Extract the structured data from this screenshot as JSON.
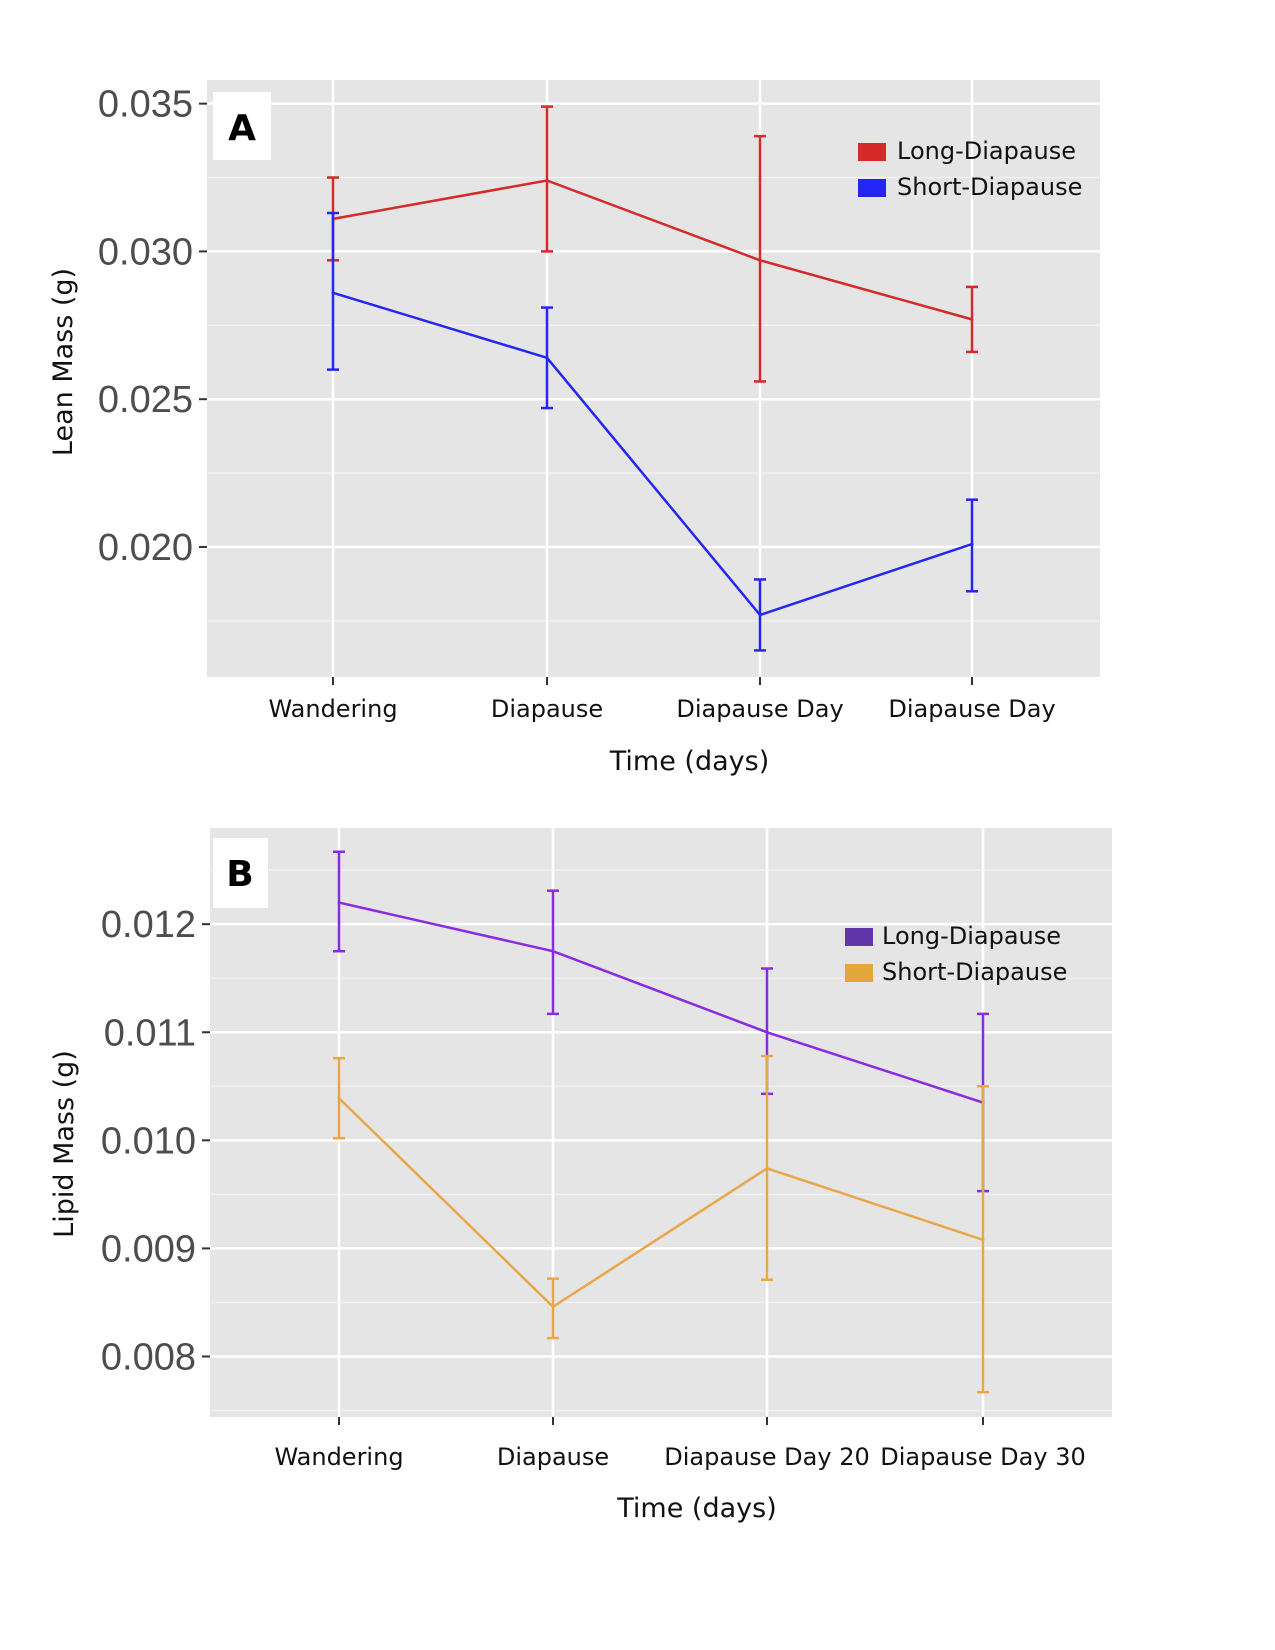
{
  "chart_data": [
    {
      "type": "line",
      "panel_label": "A",
      "xlabel": "Time (days)",
      "ylabel": "Lean Mass (g)",
      "categories": [
        "Wandering",
        "Diapause",
        "Diapause Day",
        "Diapause Day"
      ],
      "yticks": [
        "0.020",
        "0.025",
        "0.030",
        "0.035"
      ],
      "ylim": [
        0.0156,
        0.0358
      ],
      "grid": true,
      "legend_position": "top-right",
      "series": [
        {
          "name": "Long-Diapause",
          "color": "#d42a2a",
          "values": [
            0.0311,
            0.0324,
            0.0297,
            0.0277
          ],
          "err_low": [
            0.0297,
            0.03,
            0.0256,
            0.0266
          ],
          "err_high": [
            0.0325,
            0.0349,
            0.0339,
            0.0288
          ]
        },
        {
          "name": "Short-Diapause",
          "color": "#2626f2",
          "values": [
            0.0286,
            0.0264,
            0.0177,
            0.0201
          ],
          "err_low": [
            0.026,
            0.0247,
            0.0165,
            0.0185
          ],
          "err_high": [
            0.0313,
            0.0281,
            0.0189,
            0.0216
          ]
        }
      ]
    },
    {
      "type": "line",
      "panel_label": "B",
      "xlabel": "Time (days)",
      "ylabel": "Lipid Mass (g)",
      "categories": [
        "Wandering",
        "Diapause",
        "Diapause Day 20",
        "Diapause Day 30"
      ],
      "yticks": [
        "0.008",
        "0.009",
        "0.010",
        "0.011",
        "0.012"
      ],
      "ylim": [
        0.00744,
        0.01289
      ],
      "grid": true,
      "legend_position": "top-right",
      "series": [
        {
          "name": "Long-Diapause",
          "color": "#8a2be2",
          "legend_color": "#5f35a8",
          "values": [
            0.0122,
            0.01175,
            0.011,
            0.01035
          ],
          "err_low": [
            0.01175,
            0.01117,
            0.01043,
            0.00953
          ],
          "err_high": [
            0.01267,
            0.01231,
            0.01159,
            0.01117
          ]
        },
        {
          "name": "Short-Diapause",
          "color": "#e8a84a",
          "legend_color": "#e3a63b",
          "values": [
            0.01039,
            0.00846,
            0.00974,
            0.00908
          ],
          "err_low": [
            0.01002,
            0.00817,
            0.00871,
            0.00767
          ],
          "err_high": [
            0.01076,
            0.00872,
            0.01078,
            0.0105
          ]
        }
      ]
    }
  ]
}
